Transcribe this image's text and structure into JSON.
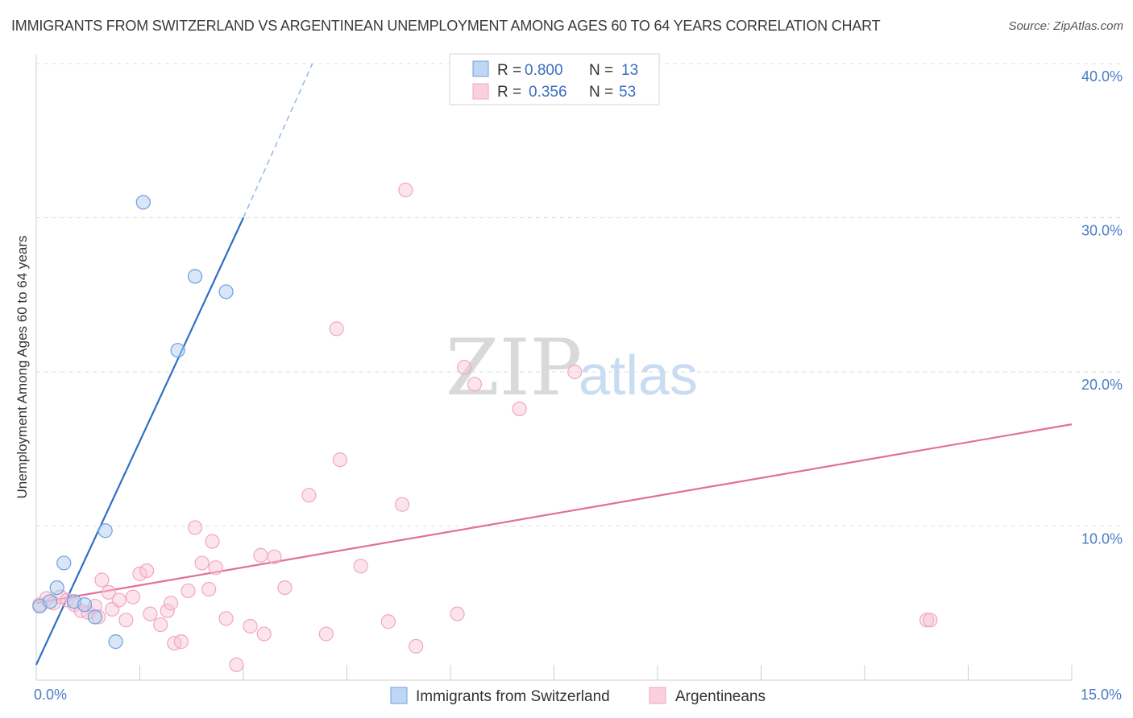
{
  "chart_data": {
    "type": "scatter",
    "title": "IMMIGRANTS FROM SWITZERLAND VS ARGENTINEAN UNEMPLOYMENT AMONG AGES 60 TO 64 YEARS CORRELATION CHART",
    "source": "Source: ZipAtlas.com",
    "xlabel": "",
    "ylabel": "Unemployment Among Ages 60 to 64 years",
    "xlim": [
      0,
      15
    ],
    "ylim": [
      0,
      40
    ],
    "x_tick_labels": [
      "0.0%",
      "15.0%"
    ],
    "y_ticks": [
      {
        "value": 10,
        "label": "10.0%"
      },
      {
        "value": 20,
        "label": "20.0%"
      },
      {
        "value": 30,
        "label": "30.0%"
      },
      {
        "value": 40,
        "label": "40.0%"
      }
    ],
    "grid": true,
    "legend_position": "top-center",
    "watermark": {
      "zip": "ZIP",
      "atlas": "atlas"
    },
    "series": [
      {
        "name": "Immigrants from Switzerland",
        "color": "#6ca0e0",
        "line_color": "#2f6fc4",
        "r_label": "R =",
        "r_value": "0.800",
        "n_label": "N =",
        "n_value": "13",
        "points": [
          [
            0.05,
            4.8
          ],
          [
            0.2,
            5.1
          ],
          [
            0.3,
            6.0
          ],
          [
            0.4,
            7.6
          ],
          [
            0.55,
            5.1
          ],
          [
            0.85,
            4.1
          ],
          [
            1.0,
            9.7
          ],
          [
            1.15,
            2.5
          ],
          [
            1.55,
            31.0
          ],
          [
            2.05,
            21.4
          ],
          [
            2.3,
            26.2
          ],
          [
            2.75,
            25.2
          ],
          [
            0.7,
            4.9
          ]
        ],
        "trend": {
          "x0": 0.0,
          "y0": 1.0,
          "x1": 3.0,
          "y1": 30.0,
          "dash_x1": 4.0,
          "dash_y1": 40.0
        }
      },
      {
        "name": "Argentineans",
        "color": "#f1a7be",
        "line_color": "#e0709a",
        "r_label": "R =",
        "r_value": "0.356",
        "n_label": "N =",
        "n_value": "53",
        "points": [
          [
            0.05,
            4.9
          ],
          [
            0.15,
            5.3
          ],
          [
            0.25,
            5.0
          ],
          [
            0.35,
            5.4
          ],
          [
            0.45,
            5.2
          ],
          [
            0.55,
            4.9
          ],
          [
            0.65,
            4.5
          ],
          [
            0.75,
            4.4
          ],
          [
            0.85,
            4.8
          ],
          [
            0.9,
            4.1
          ],
          [
            0.95,
            6.5
          ],
          [
            1.05,
            5.7
          ],
          [
            1.1,
            4.6
          ],
          [
            1.2,
            5.2
          ],
          [
            1.3,
            3.9
          ],
          [
            1.4,
            5.4
          ],
          [
            1.5,
            6.9
          ],
          [
            1.6,
            7.1
          ],
          [
            1.65,
            4.3
          ],
          [
            1.8,
            3.6
          ],
          [
            1.9,
            4.5
          ],
          [
            1.95,
            5.0
          ],
          [
            2.0,
            2.4
          ],
          [
            2.1,
            2.5
          ],
          [
            2.2,
            5.8
          ],
          [
            2.3,
            9.9
          ],
          [
            2.4,
            7.6
          ],
          [
            2.5,
            5.9
          ],
          [
            2.55,
            9.0
          ],
          [
            2.6,
            7.3
          ],
          [
            2.75,
            4.0
          ],
          [
            2.9,
            1.0
          ],
          [
            3.1,
            3.5
          ],
          [
            3.25,
            8.1
          ],
          [
            3.3,
            3.0
          ],
          [
            3.45,
            8.0
          ],
          [
            3.6,
            6.0
          ],
          [
            3.95,
            12.0
          ],
          [
            4.2,
            3.0
          ],
          [
            4.35,
            22.8
          ],
          [
            4.4,
            14.3
          ],
          [
            4.7,
            7.4
          ],
          [
            5.1,
            3.8
          ],
          [
            5.3,
            11.4
          ],
          [
            5.35,
            31.8
          ],
          [
            5.5,
            2.2
          ],
          [
            6.1,
            4.3
          ],
          [
            6.2,
            20.3
          ],
          [
            6.35,
            19.2
          ],
          [
            7.0,
            17.6
          ],
          [
            7.8,
            20.0
          ],
          [
            12.9,
            3.9
          ],
          [
            12.95,
            3.9
          ]
        ],
        "trend": {
          "x0": 0.0,
          "y0": 5.0,
          "x1": 15.0,
          "y1": 16.6
        }
      }
    ]
  }
}
